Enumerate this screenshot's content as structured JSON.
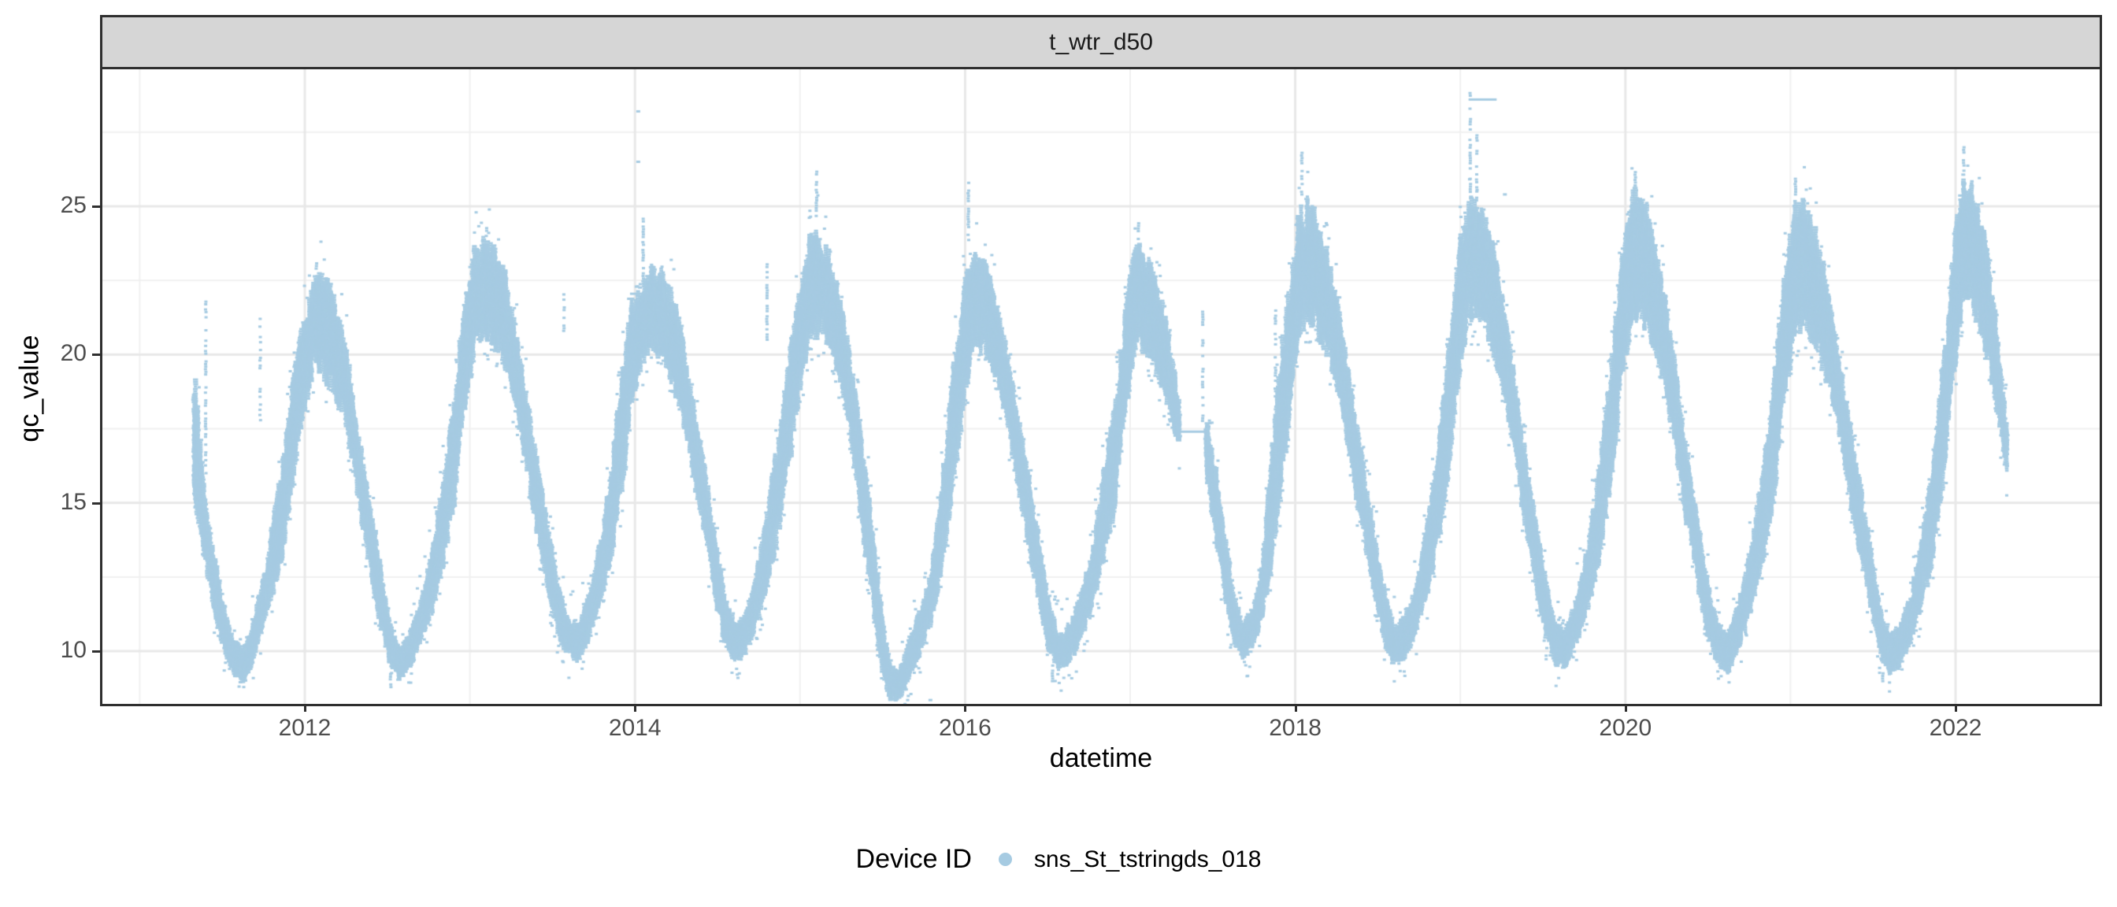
{
  "strip": {
    "title": "t_wtr_d50"
  },
  "axes": {
    "x": {
      "label": "datetime",
      "tick_labels": [
        "2012",
        "2014",
        "2016",
        "2018",
        "2020",
        "2022"
      ],
      "tick_values": [
        2012,
        2014,
        2016,
        2018,
        2020,
        2022
      ]
    },
    "y": {
      "label": "qc_value",
      "tick_labels": [
        "10",
        "15",
        "20",
        "25"
      ],
      "tick_values": [
        10,
        15,
        20,
        25
      ]
    }
  },
  "legend": {
    "title": "Device ID",
    "items": [
      {
        "label": "sns_St_tstringds_018",
        "color": "#a6cbe2",
        "marker": "dot"
      }
    ]
  },
  "chart_data": {
    "type": "scatter",
    "title": "t_wtr_d50",
    "xlabel": "datetime",
    "ylabel": "qc_value",
    "x_range": [
      2010.77,
      2022.87
    ],
    "y_range": [
      8.2,
      29.6
    ],
    "x_major": [
      2012,
      2014,
      2016,
      2018,
      2020,
      2022
    ],
    "x_minor": [
      2011,
      2013,
      2015,
      2017,
      2019,
      2021
    ],
    "y_major": [
      10,
      15,
      20,
      25
    ],
    "y_minor": [
      12.5,
      17.5,
      22.5,
      27.5
    ],
    "grid": {
      "major_color": "#e8e8e8",
      "minor_color": "#f0f0f0"
    },
    "panel": {
      "background": "#ffffff",
      "border_color": "#2f2f2f",
      "strip_fill": "#d6d6d6"
    },
    "legend_position": "bottom",
    "series": [
      {
        "name": "sns_St_tstringds_018",
        "color": "#a6cbe2",
        "marker": "small-dash",
        "band_envelope_note": "dense seasonal band of points; rows are [year_fraction, low, high], optional 4th element 1 = gap before this anchor",
        "band": [
          [
            2011.33,
            14.8,
            19.3
          ],
          [
            2011.34,
            14.5,
            19.4
          ],
          [
            2011.4,
            12.8,
            15.0
          ],
          [
            2011.46,
            11.0,
            13.2
          ],
          [
            2011.52,
            9.8,
            11.4
          ],
          [
            2011.57,
            9.2,
            10.4
          ],
          [
            2011.63,
            8.8,
            10.2
          ],
          [
            2011.68,
            9.5,
            11.0
          ],
          [
            2011.75,
            10.8,
            12.5
          ],
          [
            2011.82,
            12.0,
            15.0
          ],
          [
            2011.88,
            13.5,
            17.0
          ],
          [
            2011.95,
            16.5,
            20.5
          ],
          [
            2012.02,
            18.5,
            21.8
          ],
          [
            2012.07,
            19.5,
            22.9
          ],
          [
            2012.13,
            19.0,
            22.9
          ],
          [
            2012.18,
            18.5,
            22.0
          ],
          [
            2012.25,
            17.5,
            20.5
          ],
          [
            2012.31,
            15.5,
            18.0
          ],
          [
            2012.38,
            13.0,
            15.8
          ],
          [
            2012.45,
            11.0,
            13.4
          ],
          [
            2012.51,
            9.6,
            11.2
          ],
          [
            2012.57,
            9.0,
            10.3
          ],
          [
            2012.63,
            9.3,
            10.6
          ],
          [
            2012.7,
            10.2,
            11.8
          ],
          [
            2012.77,
            11.2,
            13.5
          ],
          [
            2012.84,
            12.8,
            16.0
          ],
          [
            2012.9,
            14.5,
            18.5
          ],
          [
            2012.96,
            17.5,
            21.5
          ],
          [
            2013.03,
            20.0,
            23.8
          ],
          [
            2013.09,
            20.5,
            24.0
          ],
          [
            2013.15,
            20.0,
            23.8
          ],
          [
            2013.21,
            19.5,
            23.0
          ],
          [
            2013.28,
            18.0,
            21.0
          ],
          [
            2013.35,
            15.8,
            18.5
          ],
          [
            2013.42,
            13.5,
            16.2
          ],
          [
            2013.49,
            11.5,
            13.8
          ],
          [
            2013.55,
            10.2,
            12.0
          ],
          [
            2013.6,
            9.8,
            11.2
          ],
          [
            2013.66,
            9.6,
            11.0
          ],
          [
            2013.73,
            10.5,
            12.2
          ],
          [
            2013.8,
            11.8,
            14.2
          ],
          [
            2013.86,
            13.0,
            16.5
          ],
          [
            2013.93,
            15.5,
            20.0
          ],
          [
            2013.98,
            18.0,
            22.2
          ],
          [
            2014.04,
            19.5,
            22.3
          ],
          [
            2014.1,
            20.0,
            23.2
          ],
          [
            2014.16,
            19.8,
            23.0
          ],
          [
            2014.22,
            19.0,
            22.3
          ],
          [
            2014.28,
            18.0,
            21.0
          ],
          [
            2014.35,
            16.0,
            18.8
          ],
          [
            2014.42,
            13.8,
            16.5
          ],
          [
            2014.48,
            11.8,
            14.2
          ],
          [
            2014.54,
            10.3,
            12.2
          ],
          [
            2014.6,
            9.6,
            11.0
          ],
          [
            2014.66,
            9.8,
            11.2
          ],
          [
            2014.72,
            10.5,
            12.3
          ],
          [
            2014.79,
            11.8,
            14.5
          ],
          [
            2014.86,
            13.5,
            17.0
          ],
          [
            2014.93,
            16.0,
            20.0
          ],
          [
            2015.0,
            18.5,
            22.5
          ],
          [
            2015.06,
            20.5,
            24.3
          ],
          [
            2015.12,
            20.5,
            24.5
          ],
          [
            2015.18,
            20.0,
            23.5
          ],
          [
            2015.25,
            19.0,
            22.0
          ],
          [
            2015.32,
            16.5,
            19.5
          ],
          [
            2015.39,
            13.5,
            16.8
          ],
          [
            2015.45,
            11.0,
            13.8
          ],
          [
            2015.5,
            9.0,
            11.2
          ],
          [
            2015.55,
            8.3,
            9.6
          ],
          [
            2015.6,
            8.3,
            9.4
          ],
          [
            2015.66,
            9.0,
            10.4
          ],
          [
            2015.72,
            9.8,
            11.4
          ],
          [
            2015.79,
            10.8,
            12.6
          ],
          [
            2015.86,
            12.5,
            15.8
          ],
          [
            2015.93,
            15.5,
            19.8
          ],
          [
            2016.0,
            18.5,
            22.8
          ],
          [
            2016.05,
            20.0,
            23.6
          ],
          [
            2016.11,
            20.0,
            23.4
          ],
          [
            2016.17,
            19.3,
            22.5
          ],
          [
            2016.24,
            18.0,
            20.8
          ],
          [
            2016.31,
            15.8,
            18.5
          ],
          [
            2016.38,
            13.5,
            16.2
          ],
          [
            2016.45,
            11.5,
            13.8
          ],
          [
            2016.51,
            9.9,
            11.8
          ],
          [
            2016.57,
            9.3,
            10.6
          ],
          [
            2016.63,
            9.5,
            10.9
          ],
          [
            2016.7,
            10.3,
            12.0
          ],
          [
            2016.77,
            11.3,
            13.6
          ],
          [
            2016.84,
            12.8,
            16.2
          ],
          [
            2016.91,
            14.8,
            18.8
          ],
          [
            2016.97,
            17.8,
            21.8
          ],
          [
            2017.03,
            20.0,
            23.9
          ],
          [
            2017.09,
            20.0,
            23.7
          ],
          [
            2017.15,
            19.5,
            22.8
          ],
          [
            2017.21,
            18.5,
            21.5
          ],
          [
            2017.27,
            17.2,
            19.5
          ],
          [
            2017.3,
            16.8,
            18.3
          ],
          [
            2017.46,
            16.0,
            18.0,
            1
          ],
          [
            2017.52,
            13.5,
            16.2
          ],
          [
            2017.58,
            11.5,
            13.8
          ],
          [
            2017.63,
            10.2,
            12.0
          ],
          [
            2017.68,
            9.7,
            11.0
          ],
          [
            2017.74,
            10.0,
            11.5
          ],
          [
            2017.8,
            11.0,
            13.0
          ],
          [
            2017.85,
            12.5,
            16.5
          ],
          [
            2017.9,
            14.5,
            19.5
          ],
          [
            2017.96,
            17.5,
            22.5
          ],
          [
            2018.02,
            20.5,
            25.0
          ],
          [
            2018.08,
            21.0,
            25.4
          ],
          [
            2018.14,
            20.5,
            24.8
          ],
          [
            2018.2,
            19.8,
            23.5
          ],
          [
            2018.27,
            18.5,
            21.5
          ],
          [
            2018.34,
            16.0,
            19.0
          ],
          [
            2018.41,
            13.8,
            16.5
          ],
          [
            2018.48,
            11.8,
            14.2
          ],
          [
            2018.54,
            10.2,
            12.2
          ],
          [
            2018.6,
            9.5,
            10.9
          ],
          [
            2018.66,
            9.7,
            11.2
          ],
          [
            2018.73,
            10.5,
            12.3
          ],
          [
            2018.8,
            11.8,
            14.5
          ],
          [
            2018.87,
            13.5,
            17.2
          ],
          [
            2018.94,
            16.5,
            21.0
          ],
          [
            2019.0,
            19.5,
            24.0
          ],
          [
            2019.06,
            21.0,
            25.4
          ],
          [
            2019.12,
            21.0,
            25.2
          ],
          [
            2019.18,
            20.3,
            24.3
          ],
          [
            2019.25,
            19.0,
            22.3
          ],
          [
            2019.32,
            16.8,
            19.8
          ],
          [
            2019.39,
            14.2,
            17.0
          ],
          [
            2019.46,
            12.0,
            14.5
          ],
          [
            2019.52,
            10.4,
            12.4
          ],
          [
            2019.58,
            9.5,
            11.0
          ],
          [
            2019.64,
            9.4,
            10.8
          ],
          [
            2019.71,
            10.3,
            12.0
          ],
          [
            2019.78,
            11.5,
            14.0
          ],
          [
            2019.85,
            13.2,
            16.8
          ],
          [
            2019.92,
            15.8,
            20.2
          ],
          [
            2019.98,
            18.8,
            23.5
          ],
          [
            2020.04,
            21.0,
            25.8
          ],
          [
            2020.1,
            21.0,
            25.6
          ],
          [
            2020.16,
            20.3,
            24.6
          ],
          [
            2020.23,
            19.0,
            22.5
          ],
          [
            2020.3,
            16.8,
            19.8
          ],
          [
            2020.37,
            14.2,
            17.0
          ],
          [
            2020.44,
            12.0,
            14.5
          ],
          [
            2020.5,
            10.4,
            12.4
          ],
          [
            2020.56,
            9.5,
            11.0
          ],
          [
            2020.62,
            9.2,
            10.6
          ],
          [
            2020.69,
            10.0,
            11.8
          ],
          [
            2020.76,
            11.2,
            13.6
          ],
          [
            2020.83,
            12.8,
            16.2
          ],
          [
            2020.9,
            15.0,
            19.2
          ],
          [
            2020.96,
            18.0,
            22.8
          ],
          [
            2021.02,
            20.5,
            25.2
          ],
          [
            2021.08,
            20.8,
            25.4
          ],
          [
            2021.14,
            20.2,
            24.6
          ],
          [
            2021.2,
            19.3,
            23.2
          ],
          [
            2021.27,
            18.0,
            20.8
          ],
          [
            2021.34,
            15.8,
            18.5
          ],
          [
            2021.41,
            13.5,
            16.2
          ],
          [
            2021.48,
            11.5,
            13.8
          ],
          [
            2021.54,
            9.9,
            11.8
          ],
          [
            2021.6,
            9.2,
            10.6
          ],
          [
            2021.66,
            9.4,
            10.9
          ],
          [
            2021.73,
            10.3,
            12.1
          ],
          [
            2021.8,
            11.5,
            14.0
          ],
          [
            2021.87,
            13.2,
            17.0
          ],
          [
            2021.94,
            16.0,
            20.8
          ],
          [
            2022.0,
            19.5,
            24.5
          ],
          [
            2022.05,
            21.5,
            26.2
          ],
          [
            2022.1,
            21.5,
            26.0
          ],
          [
            2022.16,
            20.5,
            24.8
          ],
          [
            2022.22,
            19.0,
            22.5
          ],
          [
            2022.27,
            17.3,
            20.0
          ],
          [
            2022.31,
            15.9,
            17.8
          ]
        ],
        "spike_columns_note": "sparse vertical columns [t, low, high, density]",
        "spikes": [
          [
            2011.4,
            16.0,
            21.8,
            0.5
          ],
          [
            2011.73,
            17.7,
            21.5,
            0.45
          ],
          [
            2012.07,
            22.9,
            23.1,
            0.8
          ],
          [
            2013.1,
            24.0,
            24.35,
            0.8
          ],
          [
            2013.57,
            20.8,
            22.1,
            0.5
          ],
          [
            2014.05,
            22.3,
            24.65,
            0.85
          ],
          [
            2014.8,
            20.5,
            23.2,
            0.6
          ],
          [
            2015.1,
            24.5,
            26.2,
            0.7
          ],
          [
            2016.02,
            23.6,
            25.9,
            0.6
          ],
          [
            2017.05,
            23.9,
            24.5,
            0.7
          ],
          [
            2017.44,
            17.5,
            21.7,
            0.45
          ],
          [
            2017.88,
            15.0,
            21.5,
            0.5
          ],
          [
            2018.04,
            25.4,
            26.9,
            0.7
          ],
          [
            2019.06,
            25.4,
            28.9,
            0.55
          ],
          [
            2019.1,
            25.2,
            27.5,
            0.5
          ],
          [
            2020.06,
            25.8,
            26.3,
            0.8
          ],
          [
            2021.03,
            25.4,
            26.0,
            0.8
          ],
          [
            2022.05,
            26.2,
            27.0,
            0.7
          ],
          [
            2011.63,
            8.7,
            9.3,
            0.5
          ],
          [
            2012.52,
            8.7,
            9.5,
            0.5
          ],
          [
            2016.53,
            8.9,
            9.6,
            0.5
          ],
          [
            2021.56,
            8.9,
            9.4,
            0.5
          ]
        ],
        "horizontal_segments_note": "thin horizontal runs of points [t1, t2, value]",
        "segments": [
          [
            2013.97,
            2014.06,
            22.05
          ],
          [
            2017.3,
            2017.46,
            17.4
          ],
          [
            2019.05,
            2019.22,
            28.6
          ]
        ],
        "outlier_dots": [
          [
            2014.02,
            28.2
          ],
          [
            2014.02,
            26.5
          ],
          [
            2019.27,
            25.4
          ],
          [
            2015.79,
            8.35
          ]
        ]
      }
    ]
  }
}
